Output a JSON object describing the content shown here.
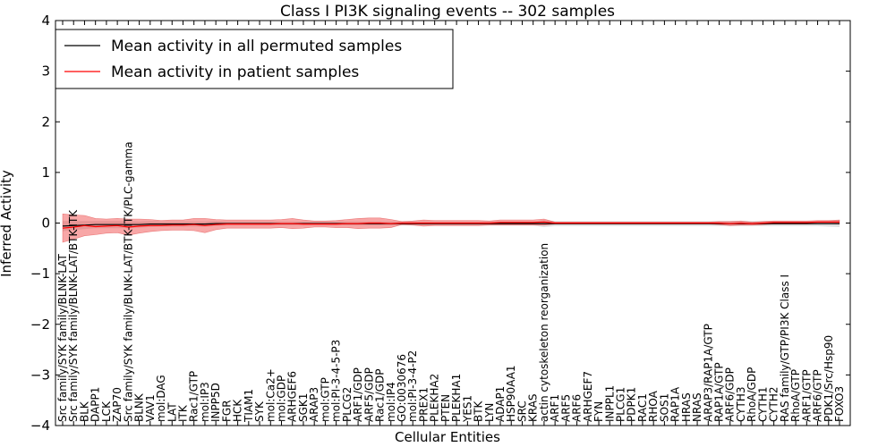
{
  "chart_data": {
    "type": "line",
    "title": "Class I PI3K signaling events -- 302 samples",
    "xlabel": "Cellular Entities",
    "ylabel": "Inferred Activity",
    "ylim": [
      -4,
      4
    ],
    "yticks": [
      "4",
      "3",
      "2",
      "1",
      "0",
      "−1",
      "−2",
      "−3",
      "−4"
    ],
    "grid": false,
    "legend_position": "top-left",
    "categories": [
      "Src family/SYK family/BLNK-LAT",
      "Src family/SYK family/BLNK-LAT/BTK-ITK",
      "BLK",
      "DAPP1",
      "LCK",
      "ZAP70",
      "Src family/SYK family/BLNK-LAT/BTK-ITK/PLC-gamma",
      "BLNK",
      "VAV1",
      "mol:DAG",
      "LAT",
      "ITK",
      "Rac1/GTP",
      "mol:IP3",
      "INPP5D",
      "FGR",
      "HCK",
      "TIAM1",
      "SYK",
      "mol:Ca2+",
      "mol:GDP",
      "ARHGEF6",
      "SGK1",
      "ARAP3",
      "mol:GTP",
      "mol:PI-3-4-5-P3",
      "PLCG2",
      "ARF1/GDP",
      "ARF5/GDP",
      "Rac1/GDP",
      "mol:IP4",
      "GO:0030676",
      "mol:PI-3-4-P2",
      "PREX1",
      "PLEKHA2",
      "PTEN",
      "PLEKHA1",
      "YES1",
      "BTK",
      "LYN",
      "ADAP1",
      "HSP90AA1",
      "SRC",
      "KRAS",
      "actin cytoskeleton reorganization",
      "ARF1",
      "ARF5",
      "ARF6",
      "ARHGEF7",
      "FYN",
      "INPPL1",
      "PLCG1",
      "PDPK1",
      "RAC1",
      "RHOA",
      "SOS1",
      "RAP1A",
      "HRAS",
      "NRAS",
      "ARAP3/RAP1A/GTP",
      "RAP1A/GTP",
      "ARF6/GDP",
      "CYTH3",
      "RhoA/GDP",
      "CYTH1",
      "CYTH2",
      "RAS family/GTP/PI3K Class I",
      "RhoA/GTP",
      "ARF1/GTP",
      "ARF6/GTP",
      "PDK1/Src/Hsp90",
      "FOXO3"
    ],
    "series": [
      {
        "name": "Mean activity in all permuted samples",
        "color": "#000000",
        "values": [
          -0.06,
          -0.05,
          -0.04,
          -0.03,
          -0.03,
          -0.03,
          -0.03,
          -0.03,
          -0.02,
          -0.02,
          -0.02,
          -0.02,
          -0.02,
          -0.02,
          -0.01,
          -0.01,
          -0.01,
          -0.01,
          -0.01,
          -0.01,
          -0.01,
          -0.01,
          -0.01,
          -0.01,
          -0.01,
          -0.01,
          -0.01,
          -0.01,
          -0.01,
          -0.01,
          -0.01,
          -0.01,
          -0.01,
          -0.01,
          -0.01,
          -0.01,
          -0.01,
          -0.01,
          -0.01,
          -0.01,
          -0.01,
          -0.01,
          -0.01,
          -0.01,
          -0.01,
          -0.01,
          -0.01,
          -0.01,
          -0.01,
          -0.01,
          -0.01,
          -0.01,
          -0.01,
          -0.01,
          -0.01,
          -0.01,
          -0.01,
          -0.01,
          -0.01,
          -0.01,
          -0.01,
          -0.01,
          -0.01,
          -0.01,
          -0.01,
          -0.01,
          -0.01,
          -0.01,
          -0.01,
          -0.01,
          -0.01,
          -0.01
        ],
        "band": [
          0.1,
          0.09,
          0.08,
          0.07,
          0.07,
          0.07,
          0.07,
          0.06,
          0.06,
          0.05,
          0.05,
          0.05,
          0.05,
          0.05,
          0.05,
          0.04,
          0.04,
          0.04,
          0.04,
          0.04,
          0.04,
          0.04,
          0.04,
          0.04,
          0.04,
          0.04,
          0.04,
          0.04,
          0.04,
          0.04,
          0.04,
          0.04,
          0.04,
          0.04,
          0.04,
          0.04,
          0.04,
          0.04,
          0.04,
          0.04,
          0.04,
          0.04,
          0.04,
          0.04,
          0.07,
          0.05,
          0.05,
          0.05,
          0.05,
          0.05,
          0.05,
          0.05,
          0.05,
          0.05,
          0.05,
          0.05,
          0.05,
          0.05,
          0.05,
          0.05,
          0.05,
          0.05,
          0.05,
          0.05,
          0.05,
          0.05,
          0.05,
          0.05,
          0.05,
          0.05,
          0.06,
          0.07
        ]
      },
      {
        "name": "Mean activity in patient samples",
        "color": "#ff0000",
        "values": [
          -0.1,
          -0.08,
          -0.05,
          -0.07,
          -0.06,
          -0.05,
          -0.08,
          -0.06,
          -0.05,
          -0.05,
          -0.04,
          -0.04,
          -0.03,
          -0.05,
          -0.03,
          -0.02,
          -0.02,
          -0.02,
          -0.02,
          -0.02,
          -0.01,
          -0.01,
          -0.02,
          -0.02,
          -0.02,
          -0.02,
          -0.01,
          -0.01,
          0.0,
          0.0,
          -0.01,
          0.0,
          0.0,
          0.0,
          0.0,
          0.0,
          0.0,
          0.0,
          0.0,
          0.0,
          0.01,
          0.01,
          0.01,
          0.01,
          0.02,
          0.0,
          0.0,
          0.0,
          0.0,
          0.0,
          0.0,
          0.0,
          0.0,
          0.0,
          0.0,
          0.0,
          0.0,
          0.0,
          0.0,
          0.0,
          0.0,
          -0.01,
          0.0,
          -0.01,
          0.0,
          0.01,
          0.01,
          0.01,
          0.01,
          0.02,
          0.02,
          0.02
        ],
        "band": [
          0.28,
          0.24,
          0.2,
          0.16,
          0.14,
          0.14,
          0.16,
          0.14,
          0.12,
          0.1,
          0.1,
          0.1,
          0.12,
          0.14,
          0.1,
          0.08,
          0.08,
          0.08,
          0.08,
          0.08,
          0.08,
          0.1,
          0.08,
          0.06,
          0.06,
          0.07,
          0.08,
          0.1,
          0.1,
          0.1,
          0.08,
          0.03,
          0.04,
          0.06,
          0.05,
          0.05,
          0.05,
          0.05,
          0.05,
          0.04,
          0.05,
          0.05,
          0.05,
          0.05,
          0.06,
          0.02,
          0.02,
          0.02,
          0.02,
          0.02,
          0.02,
          0.02,
          0.02,
          0.02,
          0.02,
          0.02,
          0.02,
          0.02,
          0.02,
          0.02,
          0.03,
          0.04,
          0.04,
          0.03,
          0.03,
          0.03,
          0.03,
          0.03,
          0.03,
          0.03,
          0.03,
          0.04
        ]
      }
    ]
  }
}
